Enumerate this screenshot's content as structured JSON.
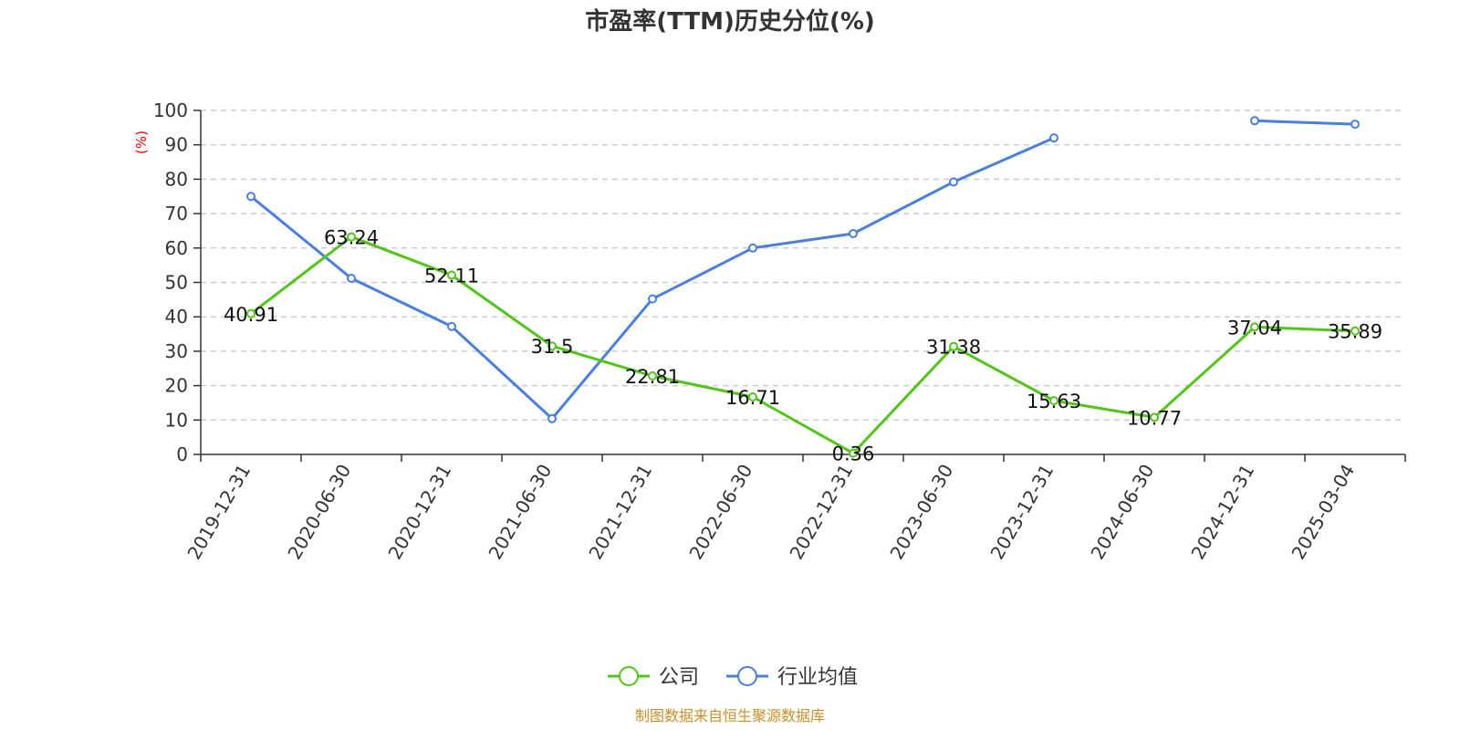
{
  "chart_data": {
    "type": "line",
    "title": "市盈率(TTM)历史分位(%)",
    "y_unit": "(%)",
    "ylim": [
      0,
      100
    ],
    "y_ticks": [
      "0",
      "10",
      "20",
      "30",
      "40",
      "50",
      "60",
      "70",
      "80",
      "90",
      "100"
    ],
    "categories": [
      "2019-12-31",
      "2020-06-30",
      "2020-12-31",
      "2021-06-30",
      "2021-12-31",
      "2022-06-30",
      "2022-12-31",
      "2023-06-30",
      "2023-12-31",
      "2024-06-30",
      "2024-12-31",
      "2025-03-04"
    ],
    "grid": true,
    "legend_position": "bottom",
    "series": [
      {
        "name": "公司",
        "color": "#52c41a",
        "show_labels": true,
        "values": [
          40.91,
          63.24,
          52.11,
          31.5,
          22.81,
          16.71,
          0.36,
          31.38,
          15.63,
          10.77,
          37.04,
          35.89
        ]
      },
      {
        "name": "行业均值",
        "color": "#4a7fdc",
        "show_labels": false,
        "values": [
          75,
          51.2,
          37.2,
          10.4,
          45.2,
          60,
          64.2,
          79.2,
          92,
          null,
          97,
          96
        ]
      }
    ]
  },
  "colors": {
    "unit_label": "#ff0000",
    "source_text": "#c8902a",
    "axis": "#333333",
    "grid": "#cccccc"
  },
  "legend": {
    "items": [
      "公司",
      "行业均值"
    ]
  },
  "source": "制图数据来自恒生聚源数据库"
}
